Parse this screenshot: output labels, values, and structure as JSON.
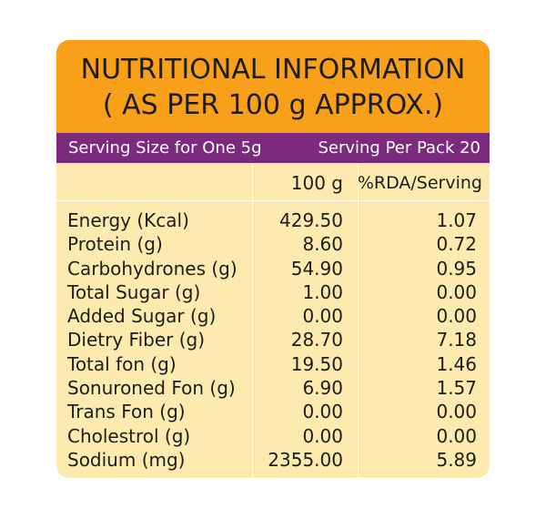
{
  "title": {
    "line1": "NUTRITIONAL INFORMATION",
    "line2": "( AS PER 100 g APPROX.)"
  },
  "serving": {
    "size": "Serving Size for One 5g",
    "per_pack": "Serving Per Pack 20"
  },
  "columns": {
    "quantity": "100 g",
    "rda": "%RDA/Serving"
  },
  "rows": [
    {
      "nutrient": "Energy (Kcal)",
      "quantity": "429.50",
      "rda": "1.07"
    },
    {
      "nutrient": "Protein (g)",
      "quantity": "8.60",
      "rda": "0.72"
    },
    {
      "nutrient": "Carbohydrones (g)",
      "quantity": "54.90",
      "rda": "0.95"
    },
    {
      "nutrient": "Total Sugar (g)",
      "quantity": "1.00",
      "rda": "0.00"
    },
    {
      "nutrient": "Added Sugar (g)",
      "quantity": "0.00",
      "rda": "0.00"
    },
    {
      "nutrient": "Dietry Fiber (g)",
      "quantity": "28.70",
      "rda": "7.18"
    },
    {
      "nutrient": "Total fon (g)",
      "quantity": "19.50",
      "rda": "1.46"
    },
    {
      "nutrient": "Sonuroned Fon (g)",
      "quantity": "6.90",
      "rda": "1.57"
    },
    {
      "nutrient": "Trans Fon (g)",
      "quantity": "0.00",
      "rda": "0.00"
    },
    {
      "nutrient": "Cholestrol (g)",
      "quantity": "0.00",
      "rda": "0.00"
    },
    {
      "nutrient": "Sodium (mg)",
      "quantity": "2355.00",
      "rda": "5.89"
    }
  ],
  "colors": {
    "title_band": "#f9a01b",
    "serving_band": "#7b2a7e",
    "table_background": "#fdeaaf",
    "text": "#1d1d1b"
  }
}
